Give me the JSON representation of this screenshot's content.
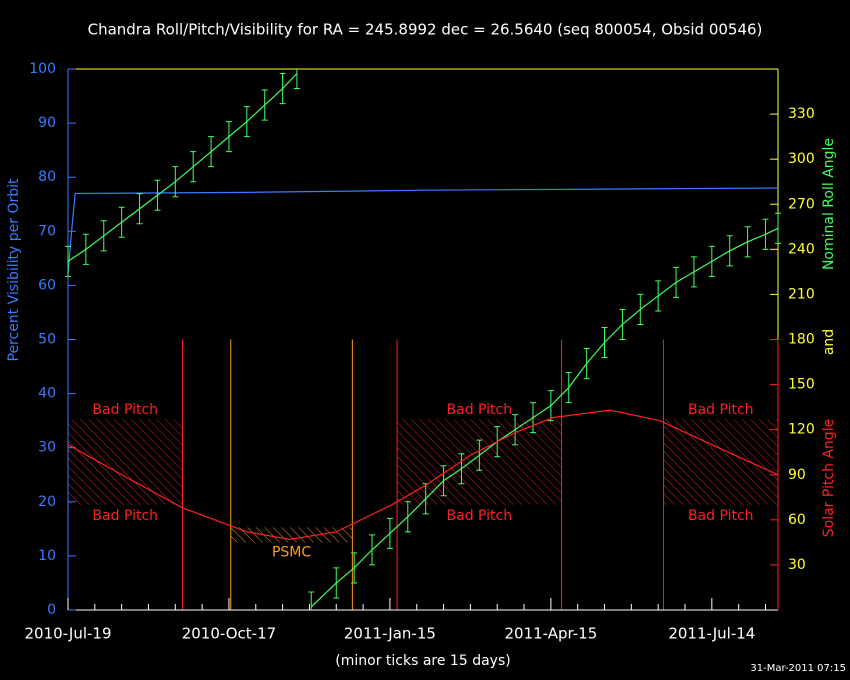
{
  "chart_data": {
    "type": "line",
    "title": "Chandra Roll/Pitch/Visibility for RA = 245.8992 dec = 26.5640 (seq 800054, Obsid 00546)",
    "ylabel": "Percent Visibility per Orbit",
    "y2label": [
      "Nominal Roll Angle",
      "and",
      "Solar Pitch Angle"
    ],
    "xlabel": "(minor ticks are 15 days)",
    "timestamp": "31-Mar-2011 07:15",
    "xlim": [
      0,
      397
    ],
    "xticks": [
      {
        "value": 0,
        "label": "2010-Jul-19"
      },
      {
        "value": 90,
        "label": "2010-Oct-17"
      },
      {
        "value": 180,
        "label": "2011-Jan-15"
      },
      {
        "value": 270,
        "label": "2011-Apr-15"
      },
      {
        "value": 360,
        "label": "2011-Jul-14"
      }
    ],
    "xminorticks": [
      15,
      30,
      45,
      60,
      75,
      105,
      120,
      135,
      150,
      165,
      195,
      210,
      225,
      240,
      255,
      285,
      300,
      315,
      330,
      345,
      375,
      390
    ],
    "ylim": [
      0,
      100
    ],
    "yticks": [
      0,
      10,
      20,
      30,
      40,
      50,
      60,
      70,
      80,
      90,
      100
    ],
    "y2lim": [
      0,
      360
    ],
    "y2ticks": [
      30,
      60,
      90,
      120,
      150,
      180,
      210,
      240,
      270,
      300,
      330
    ],
    "series": [
      {
        "color": "#3a7cff",
        "x": [
          0,
          2,
          4,
          100,
          200,
          300,
          397
        ],
        "values": [
          62,
          70,
          77,
          77.2,
          77.6,
          77.8,
          78
        ]
      },
      {
        "color": "#40ff60",
        "axis": "y2",
        "x": [
          0,
          10,
          20,
          30,
          40,
          50,
          60,
          70,
          80,
          90,
          100,
          110,
          120,
          128,
          132,
          136,
          150,
          160,
          170,
          180,
          190,
          200,
          210,
          220,
          230,
          240,
          250,
          260,
          270,
          280,
          290,
          300,
          310,
          320,
          330,
          340,
          350,
          360,
          370,
          380,
          390,
          397
        ],
        "values": [
          232,
          240,
          249,
          258,
          267,
          276,
          285,
          295,
          305,
          315,
          325,
          336,
          347,
          357,
          null,
          2,
          18,
          28,
          40,
          51,
          62,
          74,
          86,
          94,
          103,
          112,
          120,
          128,
          136,
          148,
          164,
          178,
          190,
          200,
          209,
          218,
          225,
          232,
          239,
          245,
          250,
          254
        ],
        "errors": [
          10,
          10,
          10,
          10,
          10,
          10,
          10,
          10,
          10,
          10,
          10,
          10,
          10,
          10,
          null,
          10,
          10,
          10,
          10,
          10,
          10,
          10,
          10,
          10,
          10,
          10,
          10,
          10,
          10,
          10,
          10,
          10,
          10,
          10,
          10,
          10,
          10,
          10,
          10,
          10,
          10,
          10
        ]
      },
      {
        "color": "#ff2020",
        "axis": "y2",
        "x": [
          0,
          30,
          64,
          100,
          124,
          150,
          181,
          200,
          225,
          250,
          271,
          303,
          331,
          360,
          397
        ],
        "values": [
          110,
          90,
          68,
          52,
          47,
          52,
          70,
          83,
          103,
          118,
          128,
          133,
          126,
          110,
          90
        ]
      }
    ],
    "bad_pitch": {
      "label": "Bad Pitch",
      "range": [
        70,
        127
      ],
      "periods": [
        [
          0,
          64
        ],
        [
          184,
          276
        ],
        [
          333,
          397
        ]
      ]
    },
    "psmc": {
      "label": "PSMC",
      "range": [
        45,
        55
      ],
      "period": [
        91,
        159
      ]
    }
  }
}
